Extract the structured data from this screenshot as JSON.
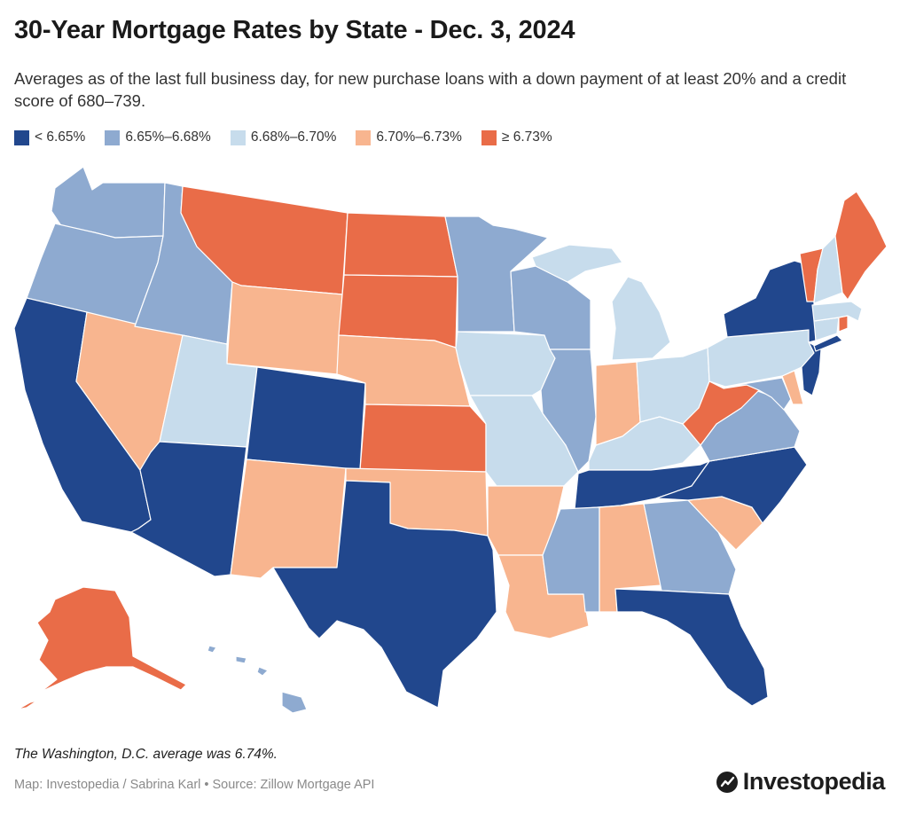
{
  "title": "30-Year Mortgage Rates by State - Dec. 3, 2024",
  "subtitle": "Averages as of the last full business day, for new purchase loans with a down payment of at least 20% and a credit score of 680–739.",
  "legend": [
    {
      "label": "< 6.65%",
      "color": "#21478d"
    },
    {
      "label": "6.65%–6.68%",
      "color": "#8eaad0"
    },
    {
      "label": "6.68%–6.70%",
      "color": "#c7dcec"
    },
    {
      "label": "6.70%–6.73%",
      "color": "#f8b58f"
    },
    {
      "label": "≥ 6.73%",
      "color": "#e96c48"
    }
  ],
  "states": [
    {
      "code": "WA",
      "bin": 1
    },
    {
      "code": "OR",
      "bin": 1
    },
    {
      "code": "CA",
      "bin": 0
    },
    {
      "code": "NV",
      "bin": 3
    },
    {
      "code": "ID",
      "bin": 1
    },
    {
      "code": "MT",
      "bin": 4
    },
    {
      "code": "WY",
      "bin": 3
    },
    {
      "code": "UT",
      "bin": 2
    },
    {
      "code": "CO",
      "bin": 0
    },
    {
      "code": "AZ",
      "bin": 0
    },
    {
      "code": "NM",
      "bin": 3
    },
    {
      "code": "ND",
      "bin": 4
    },
    {
      "code": "SD",
      "bin": 4
    },
    {
      "code": "NE",
      "bin": 3
    },
    {
      "code": "KS",
      "bin": 4
    },
    {
      "code": "OK",
      "bin": 3
    },
    {
      "code": "TX",
      "bin": 0
    },
    {
      "code": "MN",
      "bin": 1
    },
    {
      "code": "IA",
      "bin": 2
    },
    {
      "code": "MO",
      "bin": 2
    },
    {
      "code": "AR",
      "bin": 3
    },
    {
      "code": "LA",
      "bin": 3
    },
    {
      "code": "WI",
      "bin": 1
    },
    {
      "code": "IL",
      "bin": 1
    },
    {
      "code": "MI",
      "bin": 2
    },
    {
      "code": "IN",
      "bin": 3
    },
    {
      "code": "OH",
      "bin": 2
    },
    {
      "code": "KY",
      "bin": 2
    },
    {
      "code": "TN",
      "bin": 0
    },
    {
      "code": "MS",
      "bin": 1
    },
    {
      "code": "AL",
      "bin": 3
    },
    {
      "code": "GA",
      "bin": 1
    },
    {
      "code": "FL",
      "bin": 0
    },
    {
      "code": "SC",
      "bin": 3
    },
    {
      "code": "NC",
      "bin": 0
    },
    {
      "code": "VA",
      "bin": 1
    },
    {
      "code": "WV",
      "bin": 4
    },
    {
      "code": "MD",
      "bin": 1
    },
    {
      "code": "DE",
      "bin": 3
    },
    {
      "code": "PA",
      "bin": 2
    },
    {
      "code": "NJ",
      "bin": 0
    },
    {
      "code": "NY",
      "bin": 0
    },
    {
      "code": "CT",
      "bin": 2
    },
    {
      "code": "RI",
      "bin": 4
    },
    {
      "code": "MA",
      "bin": 2
    },
    {
      "code": "VT",
      "bin": 4
    },
    {
      "code": "NH",
      "bin": 2
    },
    {
      "code": "ME",
      "bin": 4
    },
    {
      "code": "AK",
      "bin": 4
    },
    {
      "code": "HI",
      "bin": 1
    }
  ],
  "note": "The Washington, D.C. average was 6.74%.",
  "footer": "Map: Investopedia / Sabrina Karl • Source: Zillow Mortgage API",
  "brand": "Investopedia"
}
